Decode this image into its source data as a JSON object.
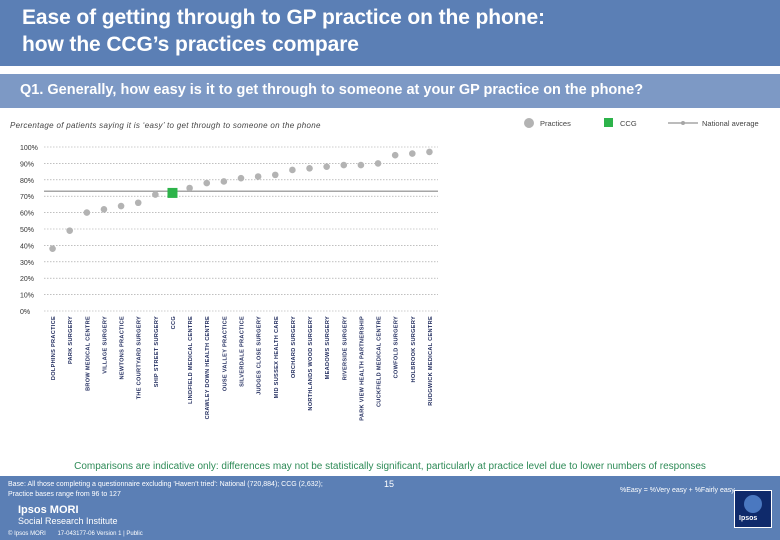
{
  "header": {
    "title_line1": "Ease of getting through to GP practice on the phone:",
    "title_line2": "how the CCG’s practices compare"
  },
  "question": "Q1. Generally, how easy is it to get through to someone at your GP practice on the phone?",
  "chart_data": {
    "type": "scatter",
    "subtitle": "Percentage of patients saying it is ‘easy’ to get through to someone on the phone",
    "legend": {
      "practices": "Practices",
      "ccg": "CCG",
      "national": "National average"
    },
    "y_ticks": [
      "100%",
      "90%",
      "80%",
      "70%",
      "60%",
      "50%",
      "40%",
      "30%",
      "20%",
      "10%",
      "0%"
    ],
    "ylim": [
      0,
      100
    ],
    "national_average": 73,
    "colors": {
      "practice": "#b3b3b3",
      "ccg": "#2db34a",
      "national": "#a6a6a6",
      "grid": "#9a9a9a"
    },
    "points": [
      {
        "label": "DOLPHINS PRACTICE",
        "value": 38,
        "kind": "practice"
      },
      {
        "label": "PARK SURGERY",
        "value": 49,
        "kind": "practice"
      },
      {
        "label": "BROW MEDICAL CENTRE",
        "value": 60,
        "kind": "practice"
      },
      {
        "label": "VILLAGE SURGERY",
        "value": 62,
        "kind": "practice"
      },
      {
        "label": "NEWTONS PRACTICE",
        "value": 64,
        "kind": "practice"
      },
      {
        "label": "THE COURTYARD SURGERY",
        "value": 66,
        "kind": "practice"
      },
      {
        "label": "SHIP STREET SURGERY",
        "value": 71,
        "kind": "practice"
      },
      {
        "label": "CCG",
        "value": 72,
        "kind": "ccg"
      },
      {
        "label": "LINDFIELD MEDICAL CENTRE",
        "value": 75,
        "kind": "practice"
      },
      {
        "label": "CRAWLEY DOWN HEALTH CENTRE",
        "value": 78,
        "kind": "practice"
      },
      {
        "label": "OUSE VALLEY PRACTICE",
        "value": 79,
        "kind": "practice"
      },
      {
        "label": "SILVERDALE PRACTICE",
        "value": 81,
        "kind": "practice"
      },
      {
        "label": "JUDGES CLOSE SURGERY",
        "value": 82,
        "kind": "practice"
      },
      {
        "label": "MID SUSSEX HEALTH CARE",
        "value": 83,
        "kind": "practice"
      },
      {
        "label": "ORCHARD SURGERY",
        "value": 86,
        "kind": "practice"
      },
      {
        "label": "NORTHLANDS WOOD SURGERY",
        "value": 87,
        "kind": "practice"
      },
      {
        "label": "MEADOWS SURGERY",
        "value": 88,
        "kind": "practice"
      },
      {
        "label": "RIVERSIDE SURGERY",
        "value": 89,
        "kind": "practice"
      },
      {
        "label": "PARK VIEW HEALTH PARTNERSHIP",
        "value": 89,
        "kind": "practice"
      },
      {
        "label": "CUCKFIELD MEDICAL CENTRE",
        "value": 90,
        "kind": "practice"
      },
      {
        "label": "COWFOLD SURGERY",
        "value": 95,
        "kind": "practice"
      },
      {
        "label": "HOLBROOK SURGERY",
        "value": 96,
        "kind": "practice"
      },
      {
        "label": "RUDGWICK MEDICAL CENTRE",
        "value": 97,
        "kind": "practice"
      }
    ]
  },
  "comparisons_note": "Comparisons are indicative only: differences may not be statistically significant, particularly at practice level due to lower numbers of responses",
  "footer": {
    "base_line1": "Base: All those completing a questionnaire excluding ‘Haven’t tried’: National (720,884); CCG (2,632);",
    "base_line2": "Practice bases range from 96 to 127",
    "easy_definition": "%Easy = %Very easy + %Fairly easy",
    "page_number": "15",
    "logo_main": "Ipsos MORI",
    "logo_sub": "Social Research Institute",
    "copyright": "© Ipsos MORI",
    "version": "17-043177-06 Version 1 | Public",
    "brand": "Ipsos"
  }
}
